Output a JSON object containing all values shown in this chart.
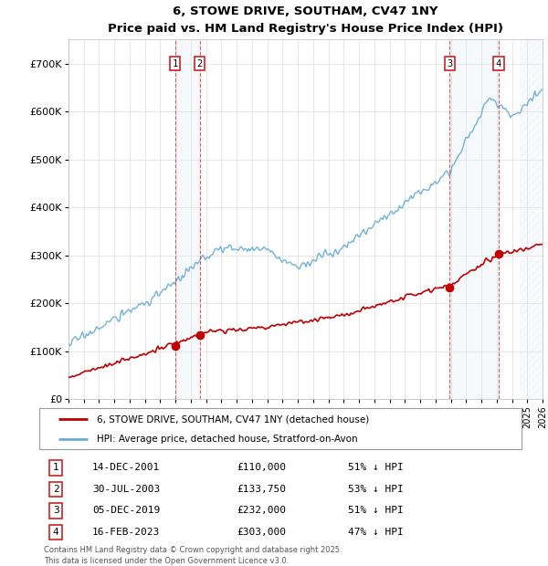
{
  "title": "6, STOWE DRIVE, SOUTHAM, CV47 1NY",
  "subtitle": "Price paid vs. HM Land Registry's House Price Index (HPI)",
  "legend_line1": "6, STOWE DRIVE, SOUTHAM, CV47 1NY (detached house)",
  "legend_line2": "HPI: Average price, detached house, Stratford-on-Avon",
  "footer1": "Contains HM Land Registry data © Crown copyright and database right 2025.",
  "footer2": "This data is licensed under the Open Government Licence v3.0.",
  "transactions": [
    {
      "num": 1,
      "date": "14-DEC-2001",
      "price": "£110,000",
      "hpi": "51% ↓ HPI",
      "year": 2001.96
    },
    {
      "num": 2,
      "date": "30-JUL-2003",
      "price": "£133,750",
      "hpi": "53% ↓ HPI",
      "year": 2003.58
    },
    {
      "num": 3,
      "date": "05-DEC-2019",
      "price": "£232,000",
      "hpi": "51% ↓ HPI",
      "year": 2019.93
    },
    {
      "num": 4,
      "date": "16-FEB-2023",
      "price": "£303,000",
      "hpi": "47% ↓ HPI",
      "year": 2023.12
    }
  ],
  "transaction_prices": [
    110000,
    133750,
    232000,
    303000
  ],
  "hpi_color": "#6aaed6",
  "price_color": "#c00000",
  "ylim": [
    0,
    750000
  ],
  "xlim_start": 1995,
  "xlim_end": 2026,
  "yticks": [
    0,
    100000,
    200000,
    300000,
    400000,
    500000,
    600000,
    700000
  ],
  "ytick_labels": [
    "£0",
    "£100K",
    "£200K",
    "£300K",
    "£400K",
    "£500K",
    "£600K",
    "£700K"
  ],
  "background_color": "#ffffff",
  "grid_color": "#dddddd",
  "shade_color": "#dbe8f4",
  "hatch_color": "#dbe8f4"
}
